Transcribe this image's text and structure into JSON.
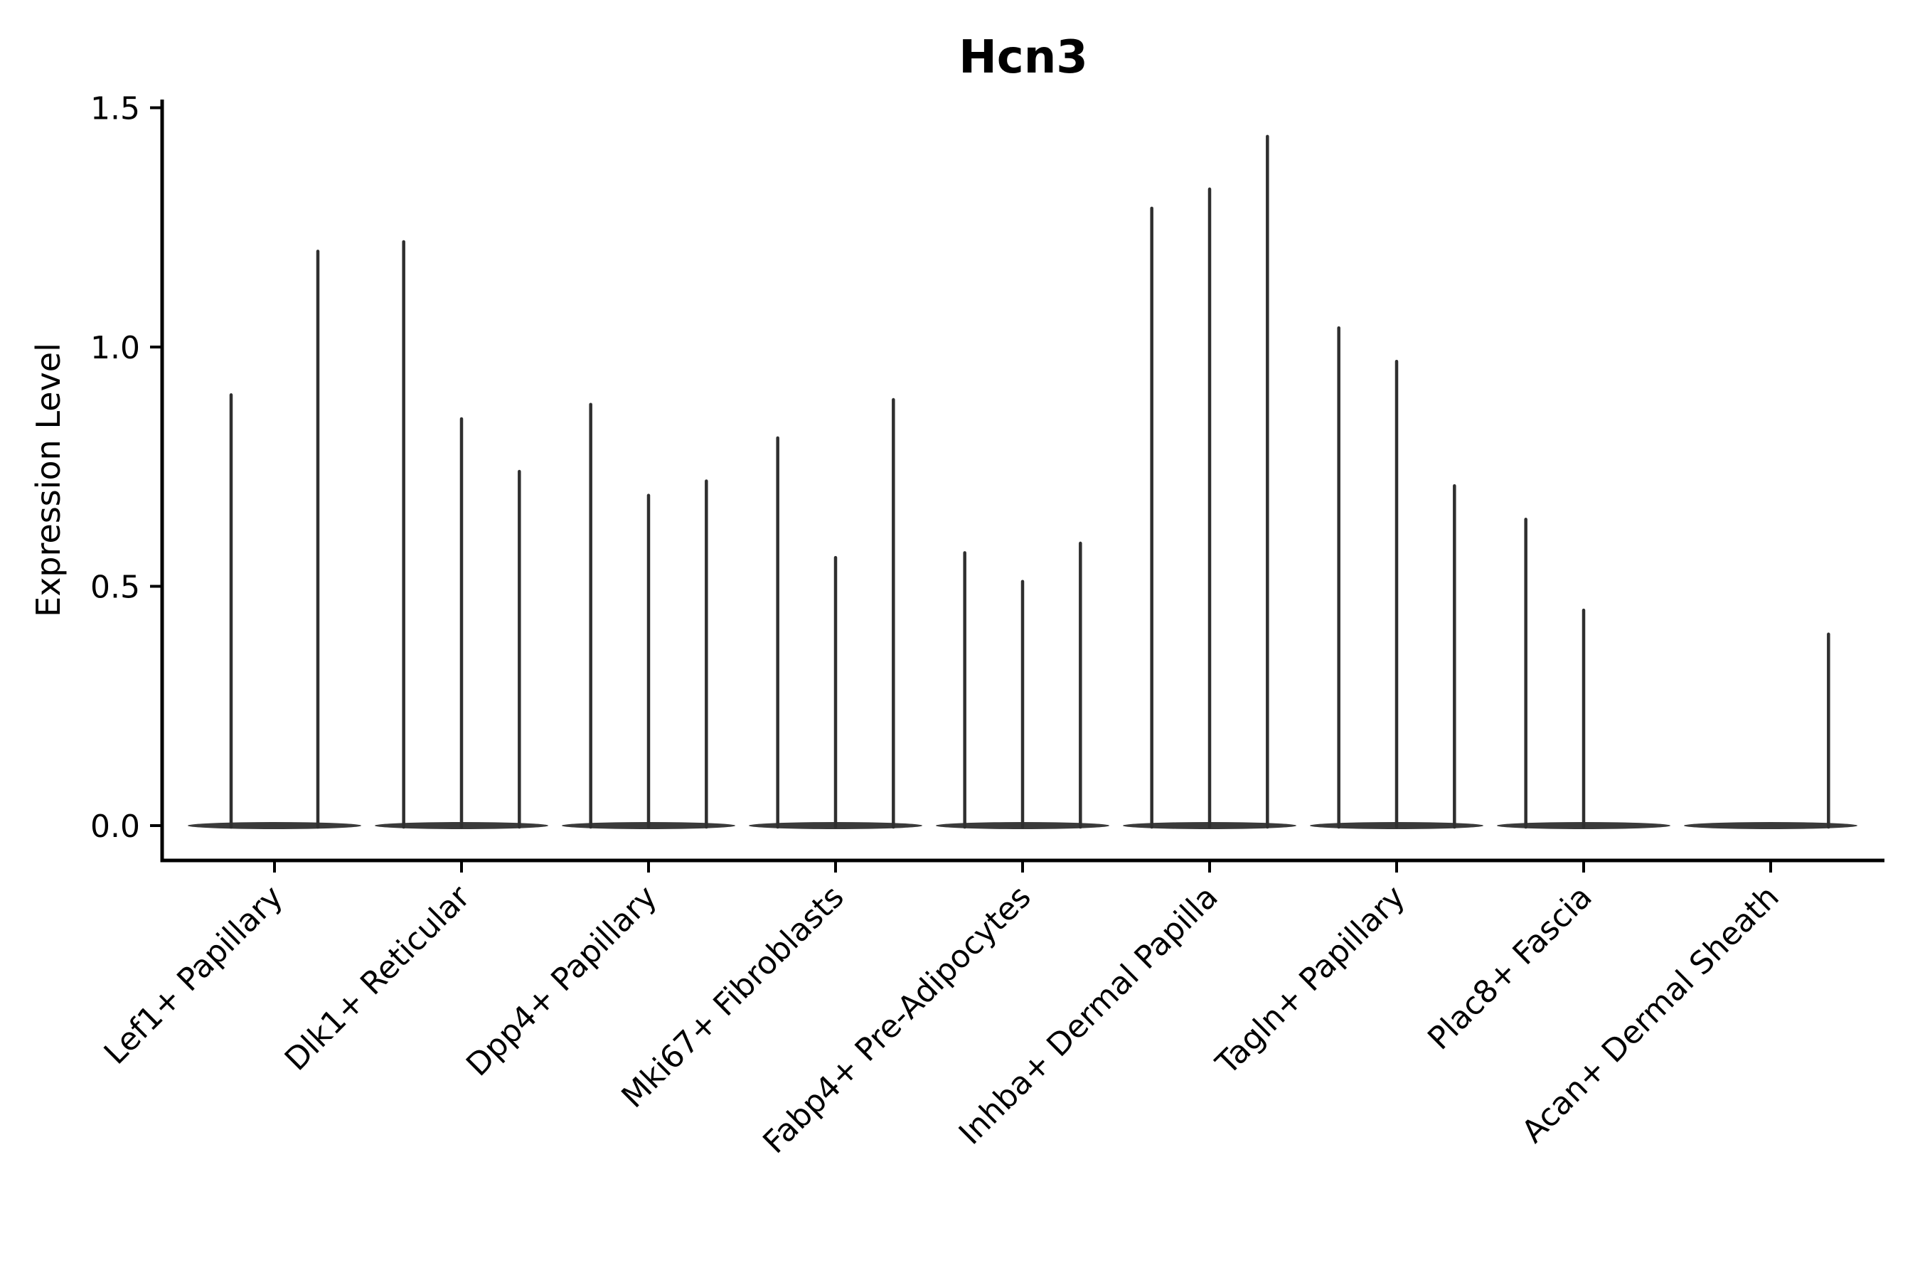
{
  "title": "Hcn3",
  "ylabel": "Expression Level",
  "chart_data": {
    "type": "violin",
    "title": "Hcn3",
    "xlabel": "",
    "ylabel": "Expression Level",
    "ylim": [
      -0.07,
      1.52
    ],
    "ytick_values": [
      0.0,
      0.5,
      1.0,
      1.5
    ],
    "ytick_labels": [
      "0.0",
      "0.5",
      "1.0",
      "1.5"
    ],
    "grid": false,
    "legend": null,
    "xtick_rotation_deg": 45,
    "categories": [
      "Lef1+ Papillary",
      "Dlk1+ Reticular",
      "Dpp4+ Papillary",
      "Mki67+ Fibroblasts",
      "Fabp4+ Pre-Adipocytes",
      "Inhba+ Dermal Papilla",
      "Tagln+ Papillary",
      "Plac8+ Fascia",
      "Acan+ Dermal Sheath"
    ],
    "groups": [
      {
        "label": "Lef1+ Papillary",
        "violins": [
          {
            "pos": 0.25,
            "max": 0.9
          },
          {
            "pos": 0.75,
            "max": 1.2
          }
        ]
      },
      {
        "label": "Dlk1+ Reticular",
        "violins": [
          {
            "pos": 0.1667,
            "max": 1.22
          },
          {
            "pos": 0.5,
            "max": 0.85
          },
          {
            "pos": 0.8333,
            "max": 0.74
          }
        ]
      },
      {
        "label": "Dpp4+ Papillary",
        "violins": [
          {
            "pos": 0.1667,
            "max": 0.88
          },
          {
            "pos": 0.5,
            "max": 0.69
          },
          {
            "pos": 0.8333,
            "max": 0.72
          }
        ]
      },
      {
        "label": "Mki67+ Fibroblasts",
        "violins": [
          {
            "pos": 0.1667,
            "max": 0.81
          },
          {
            "pos": 0.5,
            "max": 0.56
          },
          {
            "pos": 0.8333,
            "max": 0.89
          }
        ]
      },
      {
        "label": "Fabp4+ Pre-Adipocytes",
        "violins": [
          {
            "pos": 0.1667,
            "max": 0.57
          },
          {
            "pos": 0.5,
            "max": 0.51
          },
          {
            "pos": 0.8333,
            "max": 0.59
          }
        ]
      },
      {
        "label": "Inhba+ Dermal Papilla",
        "violins": [
          {
            "pos": 0.1667,
            "max": 1.29
          },
          {
            "pos": 0.5,
            "max": 1.33
          },
          {
            "pos": 0.8333,
            "max": 1.44
          }
        ]
      },
      {
        "label": "Tagln+ Papillary",
        "violins": [
          {
            "pos": 0.1667,
            "max": 1.04
          },
          {
            "pos": 0.5,
            "max": 0.97
          },
          {
            "pos": 0.8333,
            "max": 0.71
          }
        ]
      },
      {
        "label": "Plac8+ Fascia",
        "violins": [
          {
            "pos": 0.1667,
            "max": 0.64
          },
          {
            "pos": 0.5,
            "max": 0.45
          }
        ]
      },
      {
        "label": "Acan+ Dermal Sheath",
        "violins": [
          {
            "pos": 0.8333,
            "max": 0.4
          }
        ]
      }
    ],
    "colors": {
      "violin": "#2f2f2f",
      "violin_base": "#3a3a3a",
      "axis": "#000000",
      "text": "#000000",
      "background": "#ffffff"
    }
  }
}
